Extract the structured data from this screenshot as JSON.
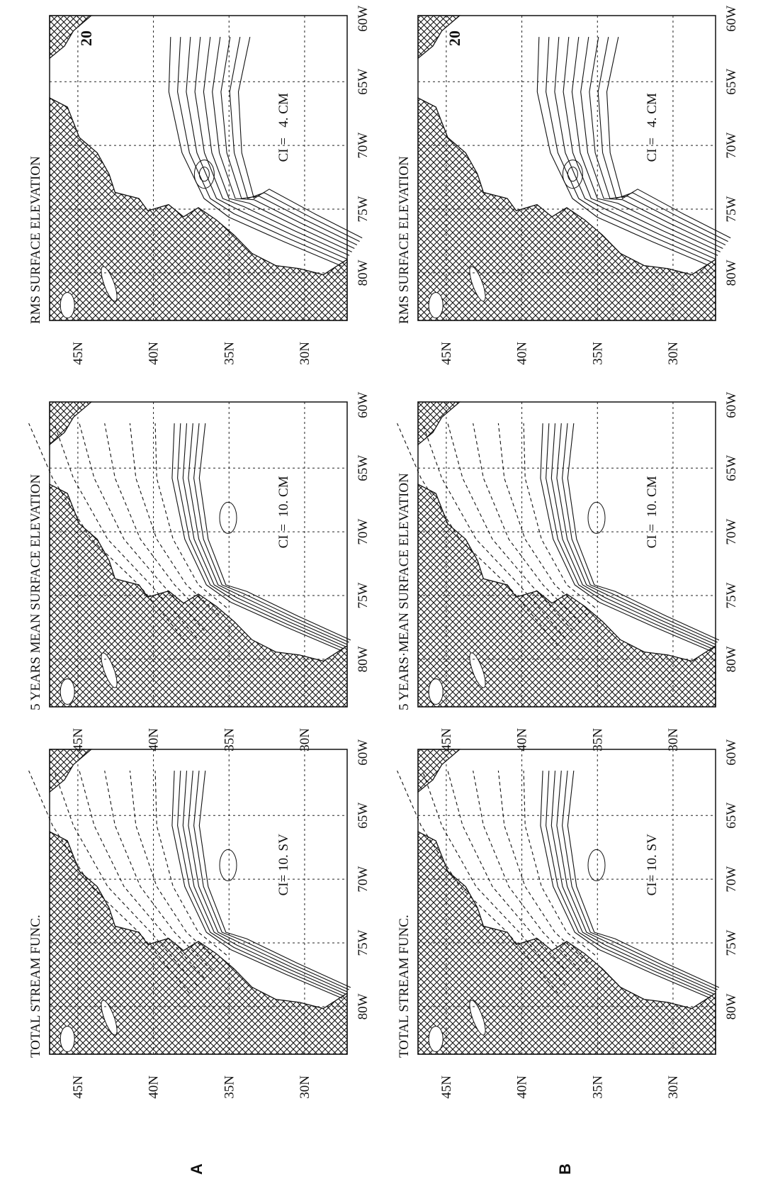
{
  "figure": {
    "rows": [
      {
        "label": "A",
        "panels": [
          {
            "title": "TOTAL STREAM FUNC.",
            "ci": "CI= 10. SV"
          },
          {
            "title": "5 YEARS MEAN SURFACE ELEVATION",
            "ci": "CI =  10. CM"
          },
          {
            "title": "RMS SURFACE ELEVATION",
            "ci": "CI =   4. CM",
            "contour_label": "20"
          }
        ]
      },
      {
        "label": "B",
        "panels": [
          {
            "title": "TOTAL STREAM FUNC.",
            "ci": "CI= 10. SV"
          },
          {
            "title": "5 YEARS·MEAN SURFACE ELEVATION",
            "ci": "CI =  10. CM"
          },
          {
            "title": "RMS SURFACE ELEVATION",
            "ci": "CI =   4. CM",
            "contour_label": "20"
          }
        ]
      }
    ],
    "lat_labels": [
      "45N",
      "40N",
      "35N",
      "30N"
    ],
    "lon_labels": [
      "80W",
      "75W",
      "70W",
      "65W",
      "60W"
    ]
  }
}
